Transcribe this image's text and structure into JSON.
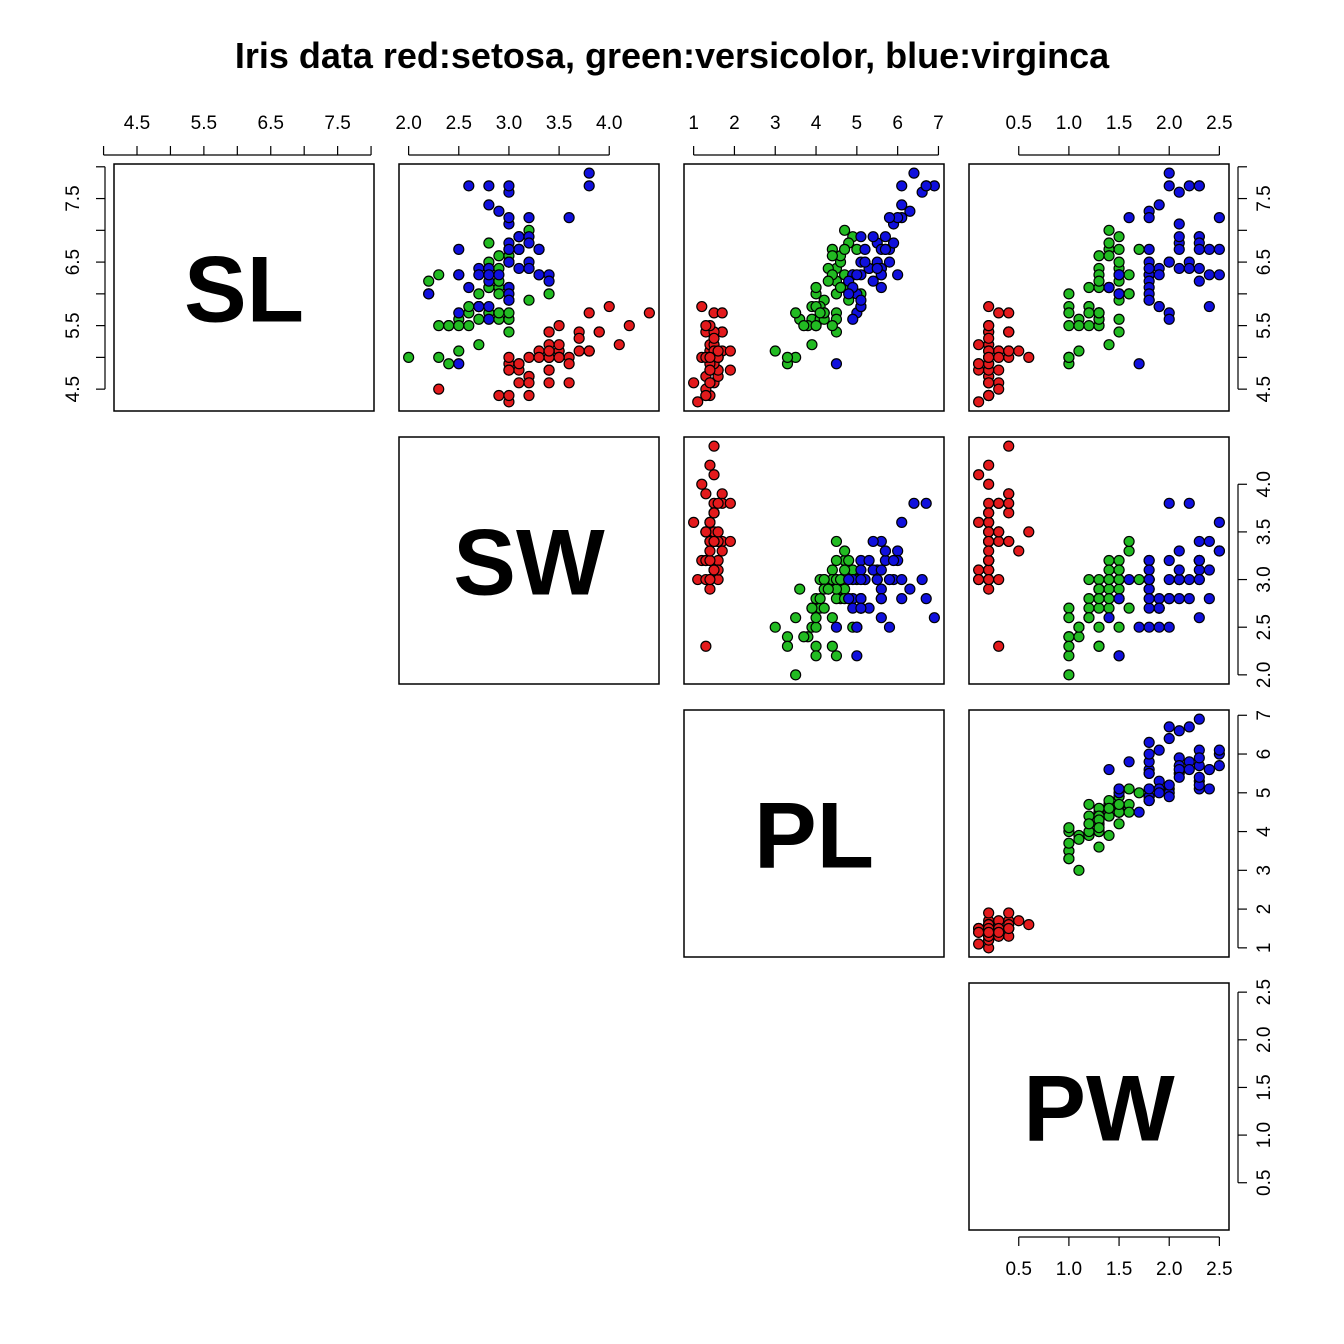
{
  "title": "Iris data red:setosa, green:versicolor, blue:virginca",
  "variables": [
    "SL",
    "SW",
    "PL",
    "PW"
  ],
  "colors": {
    "setosa": "#e31a1c",
    "versicolor": "#22bb22",
    "virginica": "#1010dd",
    "outline": "#000000"
  },
  "axes": {
    "SL": {
      "ticks": [
        4.5,
        5.5,
        6.5,
        7.5
      ],
      "labels": [
        "4.5",
        "5.5",
        "6.5",
        "7.5"
      ],
      "range": [
        4.3,
        7.9
      ]
    },
    "SW": {
      "ticks": [
        2.0,
        2.5,
        3.0,
        3.5,
        4.0
      ],
      "labels": [
        "2.0",
        "2.5",
        "3.0",
        "3.5",
        "4.0"
      ],
      "range": [
        2.0,
        4.4
      ]
    },
    "PL": {
      "ticks": [
        1,
        2,
        3,
        4,
        5,
        6,
        7
      ],
      "labels": [
        "1",
        "2",
        "3",
        "4",
        "5",
        "6",
        "7"
      ],
      "range": [
        1.0,
        6.9
      ]
    },
    "PW": {
      "ticks": [
        0.5,
        1.0,
        1.5,
        2.0,
        2.5
      ],
      "labels": [
        "0.5",
        "1.0",
        "1.5",
        "2.0",
        "2.5"
      ],
      "range": [
        0.1,
        2.5
      ]
    }
  },
  "chart_data": {
    "type": "scatter",
    "title": "Iris data red:setosa, green:versicolor, blue:virginca",
    "variables": [
      "SL",
      "SW",
      "PL",
      "PW"
    ],
    "species": [
      "setosa",
      "versicolor",
      "virginica"
    ],
    "grid": false,
    "data": {
      "setosa": [
        [
          5.1,
          3.5,
          1.4,
          0.2
        ],
        [
          4.9,
          3.0,
          1.4,
          0.2
        ],
        [
          4.7,
          3.2,
          1.3,
          0.2
        ],
        [
          4.6,
          3.1,
          1.5,
          0.2
        ],
        [
          5.0,
          3.6,
          1.4,
          0.2
        ],
        [
          5.4,
          3.9,
          1.7,
          0.4
        ],
        [
          4.6,
          3.4,
          1.4,
          0.3
        ],
        [
          5.0,
          3.4,
          1.5,
          0.2
        ],
        [
          4.4,
          2.9,
          1.4,
          0.2
        ],
        [
          4.9,
          3.1,
          1.5,
          0.1
        ],
        [
          5.4,
          3.7,
          1.5,
          0.2
        ],
        [
          4.8,
          3.4,
          1.6,
          0.2
        ],
        [
          4.8,
          3.0,
          1.4,
          0.1
        ],
        [
          4.3,
          3.0,
          1.1,
          0.1
        ],
        [
          5.8,
          4.0,
          1.2,
          0.2
        ],
        [
          5.7,
          4.4,
          1.5,
          0.4
        ],
        [
          5.4,
          3.9,
          1.3,
          0.4
        ],
        [
          5.1,
          3.5,
          1.4,
          0.3
        ],
        [
          5.7,
          3.8,
          1.7,
          0.3
        ],
        [
          5.1,
          3.8,
          1.5,
          0.3
        ],
        [
          5.4,
          3.4,
          1.7,
          0.2
        ],
        [
          5.1,
          3.7,
          1.5,
          0.4
        ],
        [
          4.6,
          3.6,
          1.0,
          0.2
        ],
        [
          5.1,
          3.3,
          1.7,
          0.5
        ],
        [
          4.8,
          3.4,
          1.9,
          0.2
        ],
        [
          5.0,
          3.0,
          1.6,
          0.2
        ],
        [
          5.0,
          3.4,
          1.6,
          0.4
        ],
        [
          5.2,
          3.5,
          1.5,
          0.2
        ],
        [
          5.2,
          3.4,
          1.4,
          0.2
        ],
        [
          4.7,
          3.2,
          1.6,
          0.2
        ],
        [
          4.8,
          3.1,
          1.6,
          0.2
        ],
        [
          5.4,
          3.4,
          1.5,
          0.4
        ],
        [
          5.2,
          4.1,
          1.5,
          0.1
        ],
        [
          5.5,
          4.2,
          1.4,
          0.2
        ],
        [
          4.9,
          3.1,
          1.5,
          0.2
        ],
        [
          5.0,
          3.2,
          1.2,
          0.2
        ],
        [
          5.5,
          3.5,
          1.3,
          0.2
        ],
        [
          4.9,
          3.6,
          1.4,
          0.1
        ],
        [
          4.4,
          3.0,
          1.3,
          0.2
        ],
        [
          5.1,
          3.4,
          1.5,
          0.2
        ],
        [
          5.0,
          3.5,
          1.3,
          0.3
        ],
        [
          4.5,
          2.3,
          1.3,
          0.3
        ],
        [
          4.4,
          3.2,
          1.3,
          0.2
        ],
        [
          5.0,
          3.5,
          1.6,
          0.6
        ],
        [
          5.1,
          3.8,
          1.9,
          0.4
        ],
        [
          4.8,
          3.0,
          1.4,
          0.3
        ],
        [
          5.1,
          3.8,
          1.6,
          0.2
        ],
        [
          4.6,
          3.2,
          1.4,
          0.2
        ],
        [
          5.3,
          3.7,
          1.5,
          0.2
        ],
        [
          5.0,
          3.3,
          1.4,
          0.2
        ]
      ],
      "versicolor": [
        [
          7.0,
          3.2,
          4.7,
          1.4
        ],
        [
          6.4,
          3.2,
          4.5,
          1.5
        ],
        [
          6.9,
          3.1,
          4.9,
          1.5
        ],
        [
          5.5,
          2.3,
          4.0,
          1.3
        ],
        [
          6.5,
          2.8,
          4.6,
          1.5
        ],
        [
          5.7,
          2.8,
          4.5,
          1.3
        ],
        [
          6.3,
          3.3,
          4.7,
          1.6
        ],
        [
          4.9,
          2.4,
          3.3,
          1.0
        ],
        [
          6.6,
          2.9,
          4.6,
          1.3
        ],
        [
          5.2,
          2.7,
          3.9,
          1.4
        ],
        [
          5.0,
          2.0,
          3.5,
          1.0
        ],
        [
          5.9,
          3.0,
          4.2,
          1.5
        ],
        [
          6.0,
          2.2,
          4.0,
          1.0
        ],
        [
          6.1,
          2.9,
          4.7,
          1.4
        ],
        [
          5.6,
          2.9,
          3.6,
          1.3
        ],
        [
          6.7,
          3.1,
          4.4,
          1.4
        ],
        [
          5.6,
          3.0,
          4.5,
          1.5
        ],
        [
          5.8,
          2.7,
          4.1,
          1.0
        ],
        [
          6.2,
          2.2,
          4.5,
          1.5
        ],
        [
          5.6,
          2.5,
          3.9,
          1.1
        ],
        [
          5.9,
          3.2,
          4.8,
          1.8
        ],
        [
          6.1,
          2.8,
          4.0,
          1.3
        ],
        [
          6.3,
          2.5,
          4.9,
          1.5
        ],
        [
          6.1,
          2.8,
          4.7,
          1.2
        ],
        [
          6.4,
          2.9,
          4.3,
          1.3
        ],
        [
          6.6,
          3.0,
          4.4,
          1.4
        ],
        [
          6.8,
          2.8,
          4.8,
          1.4
        ],
        [
          6.7,
          3.0,
          5.0,
          1.7
        ],
        [
          6.0,
          2.9,
          4.5,
          1.5
        ],
        [
          5.7,
          2.6,
          3.5,
          1.0
        ],
        [
          5.5,
          2.4,
          3.8,
          1.1
        ],
        [
          5.5,
          2.4,
          3.7,
          1.0
        ],
        [
          5.8,
          2.7,
          3.9,
          1.2
        ],
        [
          6.0,
          2.7,
          5.1,
          1.6
        ],
        [
          5.4,
          3.0,
          4.5,
          1.5
        ],
        [
          6.0,
          3.4,
          4.5,
          1.6
        ],
        [
          6.7,
          3.1,
          4.7,
          1.5
        ],
        [
          6.3,
          2.3,
          4.4,
          1.3
        ],
        [
          5.6,
          3.0,
          4.1,
          1.3
        ],
        [
          5.5,
          2.5,
          4.0,
          1.3
        ],
        [
          5.5,
          2.6,
          4.4,
          1.2
        ],
        [
          6.1,
          3.0,
          4.6,
          1.4
        ],
        [
          5.8,
          2.6,
          4.0,
          1.2
        ],
        [
          5.0,
          2.3,
          3.3,
          1.0
        ],
        [
          5.6,
          2.7,
          4.2,
          1.3
        ],
        [
          5.7,
          3.0,
          4.2,
          1.2
        ],
        [
          5.7,
          2.9,
          4.2,
          1.3
        ],
        [
          6.2,
          2.9,
          4.3,
          1.3
        ],
        [
          5.1,
          2.5,
          3.0,
          1.1
        ],
        [
          5.7,
          2.8,
          4.1,
          1.3
        ]
      ],
      "virginica": [
        [
          6.3,
          3.3,
          6.0,
          2.5
        ],
        [
          5.8,
          2.7,
          5.1,
          1.9
        ],
        [
          7.1,
          3.0,
          5.9,
          2.1
        ],
        [
          6.3,
          2.9,
          5.6,
          1.8
        ],
        [
          6.5,
          3.0,
          5.8,
          2.2
        ],
        [
          7.6,
          3.0,
          6.6,
          2.1
        ],
        [
          4.9,
          2.5,
          4.5,
          1.7
        ],
        [
          7.3,
          2.9,
          6.3,
          1.8
        ],
        [
          6.7,
          2.5,
          5.8,
          1.8
        ],
        [
          7.2,
          3.6,
          6.1,
          2.5
        ],
        [
          6.5,
          3.2,
          5.1,
          2.0
        ],
        [
          6.4,
          2.7,
          5.3,
          1.9
        ],
        [
          6.8,
          3.0,
          5.5,
          2.1
        ],
        [
          5.7,
          2.5,
          5.0,
          2.0
        ],
        [
          5.8,
          2.8,
          5.1,
          2.4
        ],
        [
          6.4,
          3.2,
          5.3,
          2.3
        ],
        [
          6.5,
          3.0,
          5.5,
          1.8
        ],
        [
          7.7,
          3.8,
          6.7,
          2.2
        ],
        [
          7.7,
          2.6,
          6.9,
          2.3
        ],
        [
          6.0,
          2.2,
          5.0,
          1.5
        ],
        [
          6.9,
          3.2,
          5.7,
          2.3
        ],
        [
          5.6,
          2.8,
          4.9,
          2.0
        ],
        [
          7.7,
          2.8,
          6.7,
          2.0
        ],
        [
          6.3,
          2.7,
          4.9,
          1.8
        ],
        [
          6.7,
          3.3,
          5.7,
          2.1
        ],
        [
          7.2,
          3.2,
          6.0,
          1.8
        ],
        [
          6.2,
          2.8,
          4.8,
          1.8
        ],
        [
          6.1,
          3.0,
          4.9,
          1.8
        ],
        [
          6.4,
          2.8,
          5.6,
          2.1
        ],
        [
          7.2,
          3.0,
          5.8,
          1.6
        ],
        [
          7.4,
          2.8,
          6.1,
          1.9
        ],
        [
          7.9,
          3.8,
          6.4,
          2.0
        ],
        [
          6.4,
          2.8,
          5.6,
          2.2
        ],
        [
          6.3,
          2.8,
          5.1,
          1.5
        ],
        [
          6.1,
          2.6,
          5.6,
          1.4
        ],
        [
          7.7,
          3.0,
          6.1,
          2.3
        ],
        [
          6.3,
          3.4,
          5.6,
          2.4
        ],
        [
          6.4,
          3.1,
          5.5,
          1.8
        ],
        [
          6.0,
          3.0,
          4.8,
          1.8
        ],
        [
          6.9,
          3.1,
          5.4,
          2.1
        ],
        [
          6.7,
          3.1,
          5.6,
          2.4
        ],
        [
          6.9,
          3.1,
          5.1,
          2.3
        ],
        [
          5.8,
          2.7,
          5.1,
          1.9
        ],
        [
          6.8,
          3.2,
          5.9,
          2.3
        ],
        [
          6.7,
          3.3,
          5.7,
          2.5
        ],
        [
          6.7,
          3.0,
          5.2,
          2.3
        ],
        [
          6.3,
          2.5,
          5.0,
          1.9
        ],
        [
          6.5,
          3.0,
          5.2,
          2.0
        ],
        [
          6.2,
          3.4,
          5.4,
          2.3
        ],
        [
          5.9,
          3.0,
          5.1,
          1.8
        ]
      ]
    }
  }
}
